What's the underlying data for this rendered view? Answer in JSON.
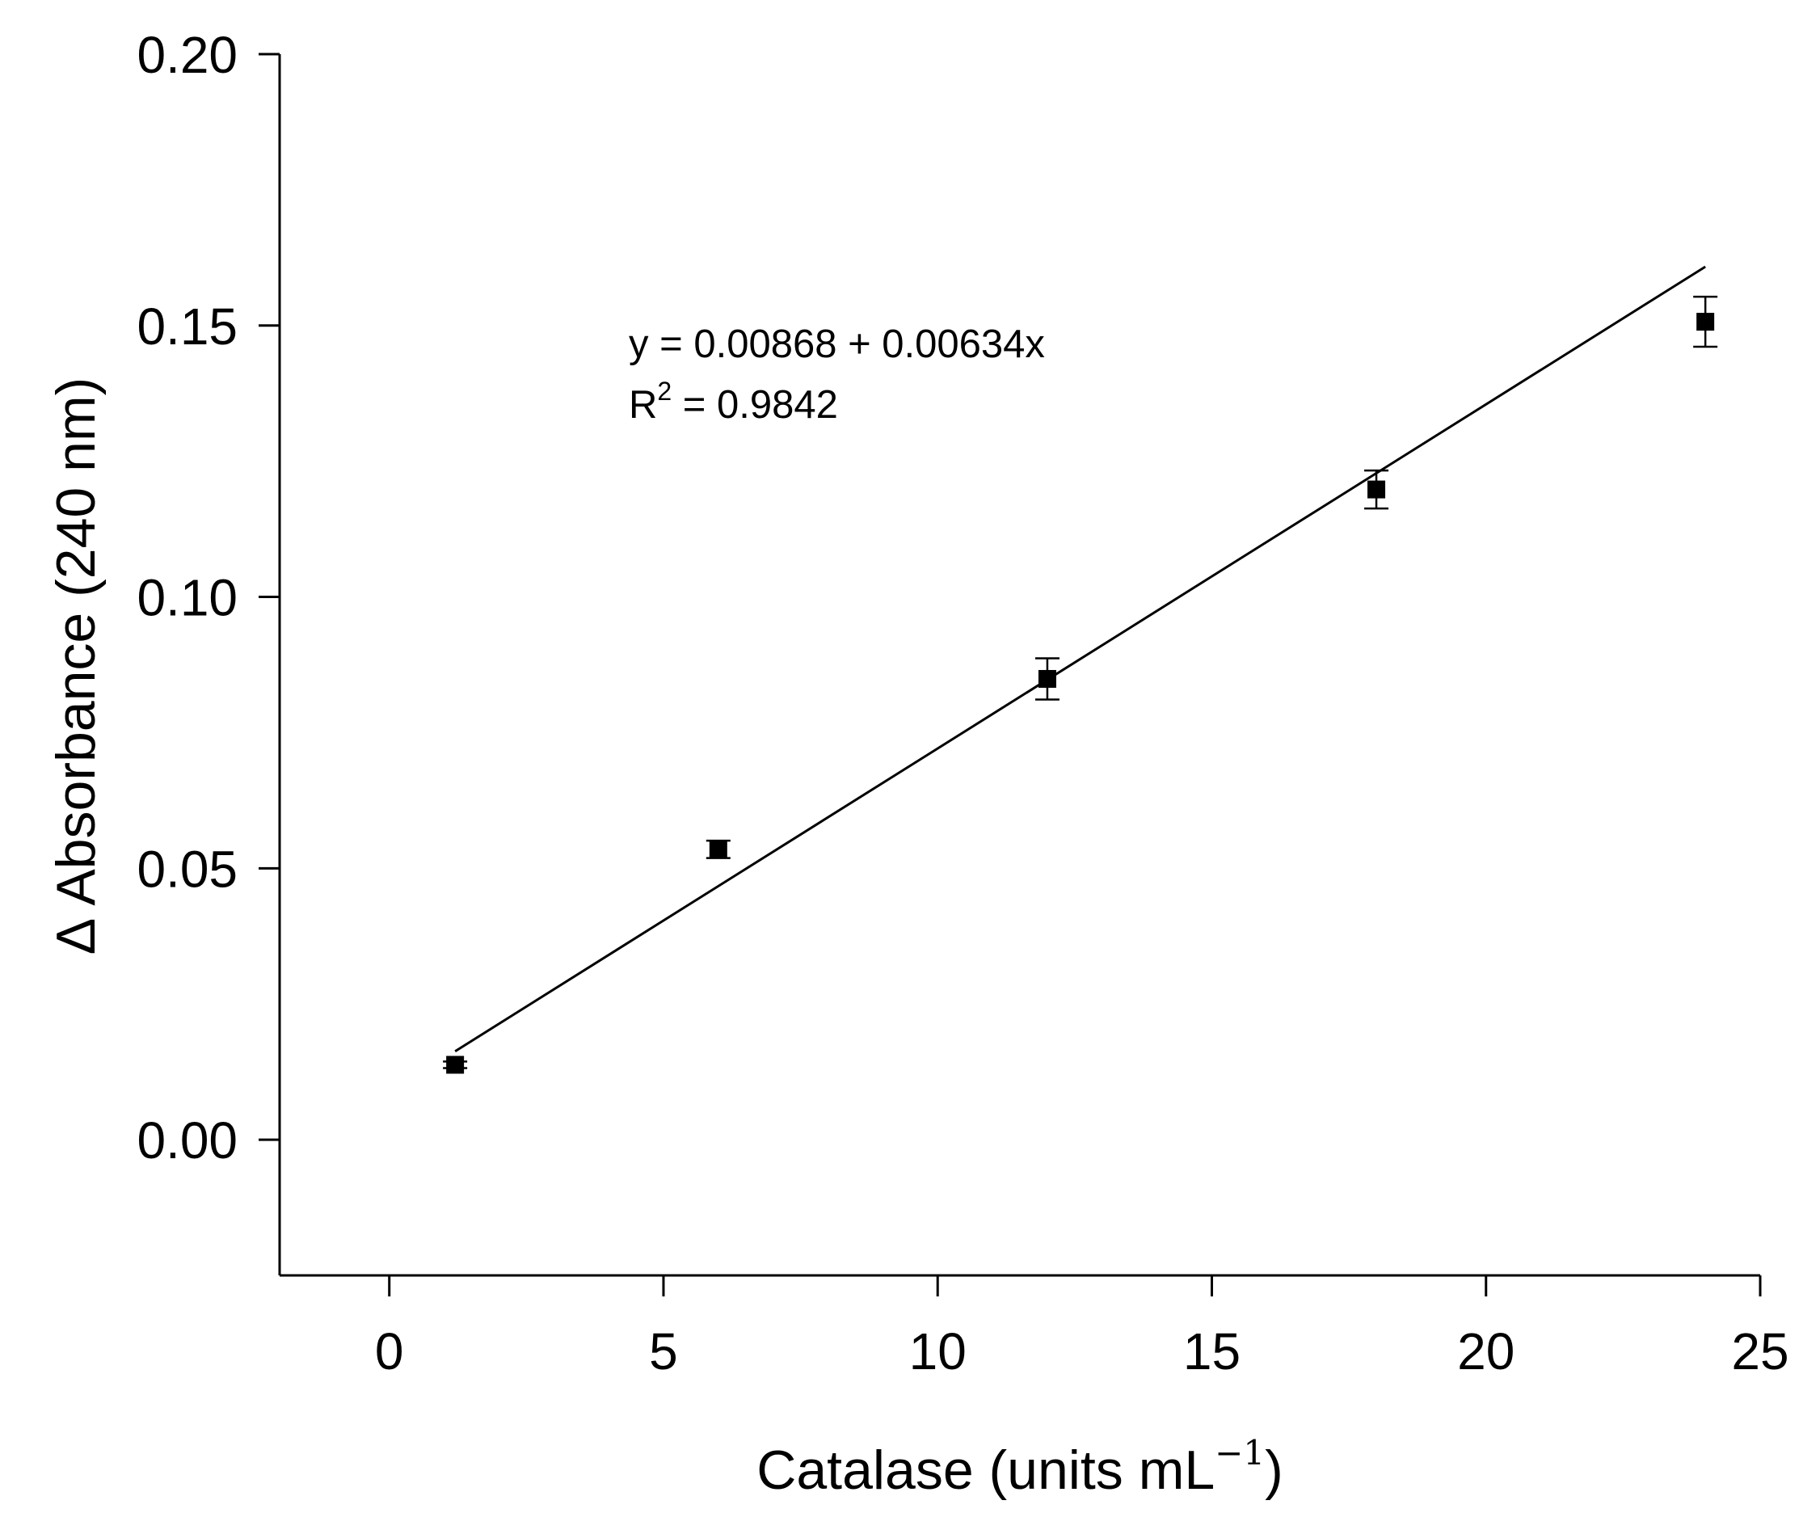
{
  "chart_data": {
    "type": "scatter",
    "title": "",
    "xlabel": "Catalase (units mL",
    "xlabel_superscript": "−1",
    "xlabel_suffix": ")",
    "ylabel": "Δ Absorbance (240 nm)",
    "xlim": [
      -2,
      25
    ],
    "ylim": [
      -0.025,
      0.2
    ],
    "x_ticks": [
      "0",
      "5",
      "10",
      "15",
      "20",
      "25"
    ],
    "y_ticks": [
      "0.00",
      "0.05",
      "0.10",
      "0.15",
      "0.20"
    ],
    "grid": false,
    "legend": "none",
    "series": [
      {
        "points": [
          {
            "x": 1.2,
            "y": 0.0138,
            "err": 0.0006
          },
          {
            "x": 6.0,
            "y": 0.0535,
            "err": 0.0016
          },
          {
            "x": 12.0,
            "y": 0.0849,
            "err": 0.0038
          },
          {
            "x": 18.0,
            "y": 0.1198,
            "err": 0.0035
          },
          {
            "x": 24.0,
            "y": 0.1507,
            "err": 0.0046
          }
        ]
      }
    ],
    "fit_line": {
      "intercept": 0.00868,
      "slope": 0.00634,
      "x_range": [
        1.2,
        24.0
      ]
    },
    "annotations": {
      "equation": "y = 0.00868 + 0.00634x",
      "r2_label": "R",
      "r2_sup": "2",
      "r2_value": " = 0.9842"
    },
    "colors": {
      "marker": "#000000",
      "line": "#000000",
      "axis": "#000000"
    }
  }
}
